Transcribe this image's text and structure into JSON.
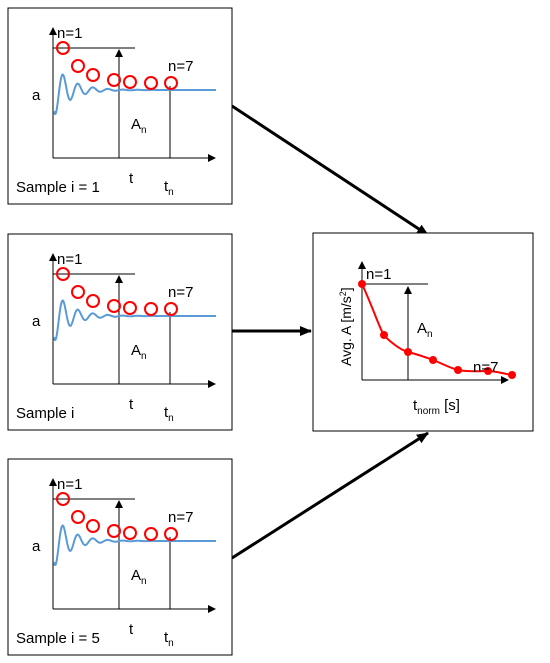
{
  "panels": [
    {
      "sample_label": "Sample i = 1",
      "axis_y": "a",
      "axis_x": "t",
      "first_peak_label": "n=1",
      "last_peak_label": "n=7",
      "amplitude_label": {
        "base": "A",
        "sub": "n"
      },
      "time_label": {
        "base": "t",
        "sub": "n"
      }
    },
    {
      "sample_label": "Sample i",
      "axis_y": "a",
      "axis_x": "t",
      "first_peak_label": "n=1",
      "last_peak_label": "n=7",
      "amplitude_label": {
        "base": "A",
        "sub": "n"
      },
      "time_label": {
        "base": "t",
        "sub": "n"
      }
    },
    {
      "sample_label": "Sample i = 5",
      "axis_y": "a",
      "axis_x": "t",
      "first_peak_label": "n=1",
      "last_peak_label": "n=7",
      "amplitude_label": {
        "base": "A",
        "sub": "n"
      },
      "time_label": {
        "base": "t",
        "sub": "n"
      }
    }
  ],
  "summary": {
    "axis_y": {
      "base": "Avg. A [m/s",
      "sup": "2",
      "tail": "]"
    },
    "axis_x": {
      "base": "t",
      "sub": "norm",
      "tail": " [s]"
    },
    "first_point_label": "n=1",
    "last_point_label": "n=7",
    "amplitude_label": {
      "base": "A",
      "sub": "n"
    },
    "point_count": 7
  },
  "colors": {
    "signal": "#5B9BD5",
    "peak_marker": "#FF0000",
    "summary_curve": "#FF0000",
    "axis": "#000000"
  }
}
